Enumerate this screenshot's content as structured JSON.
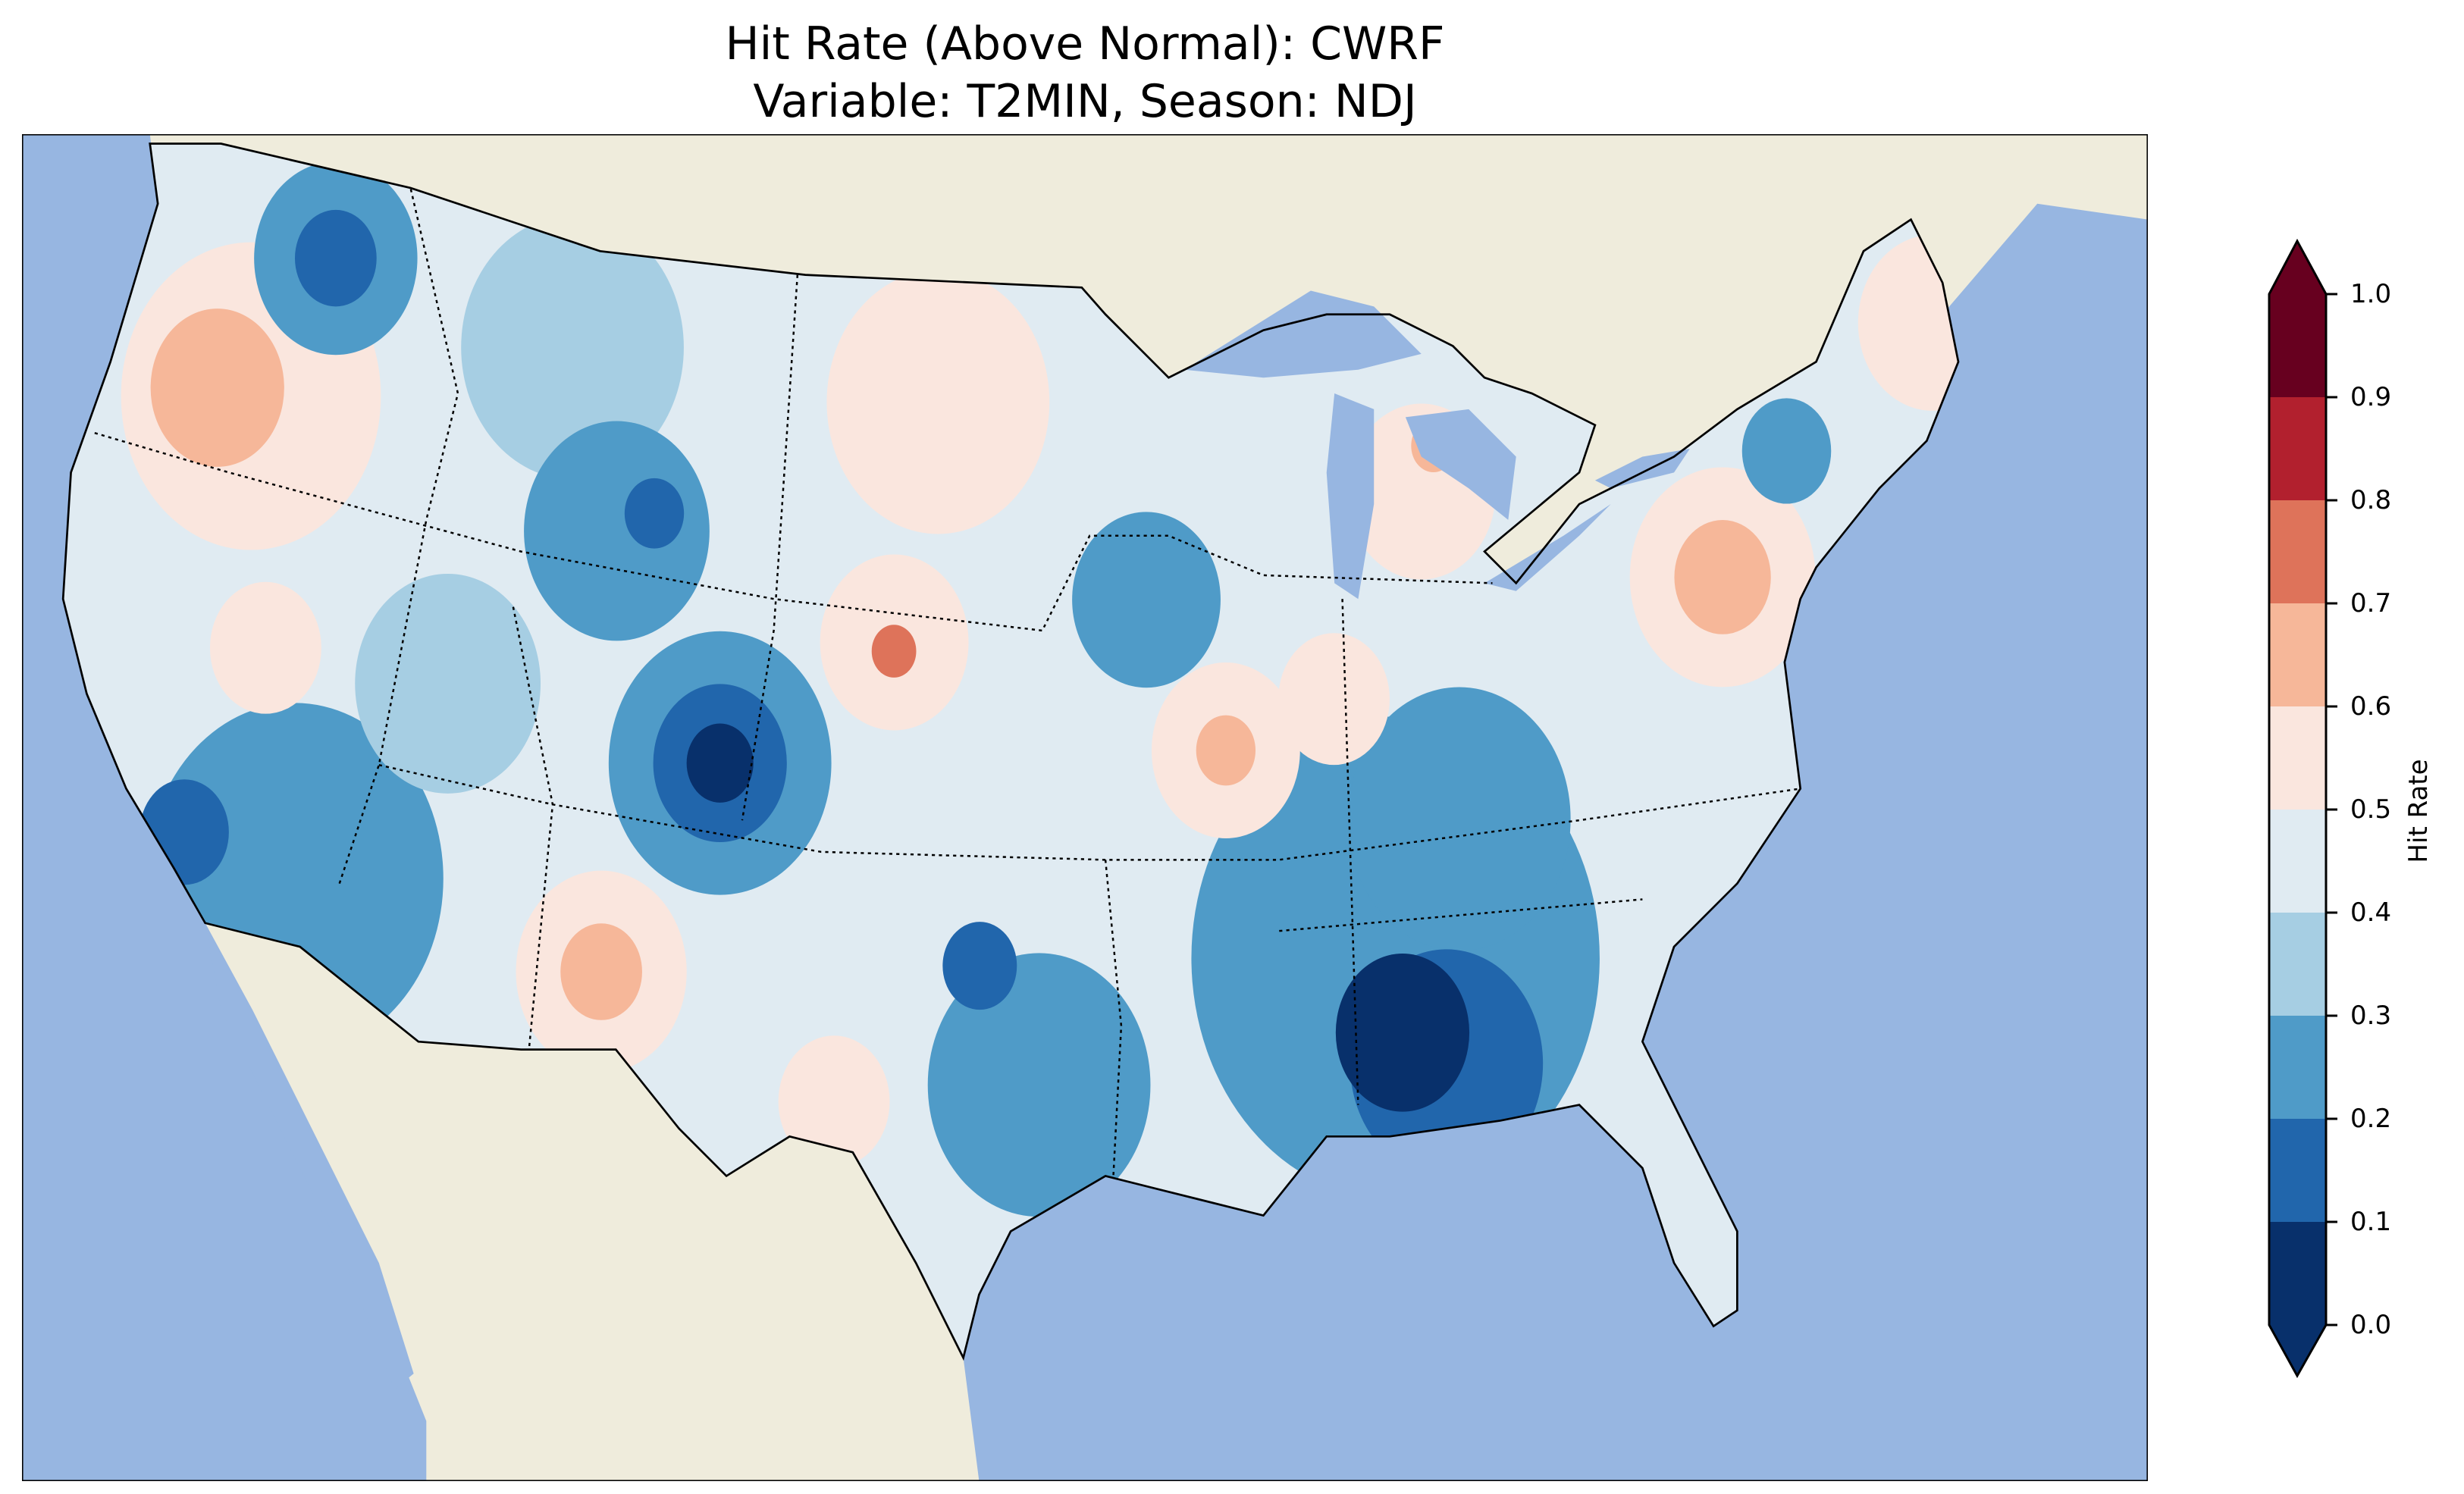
{
  "chart_data": {
    "type": "heatmap",
    "title": "Hit Rate (Above Normal): CWRF",
    "subtitle": "Variable: T2MIN, Season: NDJ",
    "colorbar": {
      "label": "Hit Rate",
      "range": [
        0.0,
        1.0
      ],
      "extend": "both",
      "ticks": [
        "0.0",
        "0.1",
        "0.2",
        "0.3",
        "0.4",
        "0.5",
        "0.6",
        "0.7",
        "0.8",
        "0.9",
        "1.0"
      ],
      "bins": [
        {
          "range": [
            0.0,
            0.1
          ],
          "color": "#08306b"
        },
        {
          "range": [
            0.1,
            0.2
          ],
          "color": "#2166ac"
        },
        {
          "range": [
            0.2,
            0.3
          ],
          "color": "#4f9bc8"
        },
        {
          "range": [
            0.3,
            0.4
          ],
          "color": "#a6cee3"
        },
        {
          "range": [
            0.4,
            0.5
          ],
          "color": "#e0ebf2"
        },
        {
          "range": [
            0.5,
            0.6
          ],
          "color": "#fae6de"
        },
        {
          "range": [
            0.6,
            0.7
          ],
          "color": "#f6b799"
        },
        {
          "range": [
            0.7,
            0.8
          ],
          "color": "#de735a"
        },
        {
          "range": [
            0.8,
            0.9
          ],
          "color": "#b2202e"
        },
        {
          "range": [
            0.9,
            1.0
          ],
          "color": "#67001f"
        }
      ]
    },
    "background_value": 0.45,
    "regions": [
      {
        "name": "southeast",
        "lon": -87,
        "lat": 33.5,
        "extent_deg": 5.5,
        "value": 0.25
      },
      {
        "name": "southwest",
        "lon": -115,
        "lat": 34,
        "extent_deg": 4,
        "value": 0.25
      },
      {
        "name": "colorado-wide",
        "lon": -104.5,
        "lat": 38,
        "extent_deg": 3,
        "value": 0.25
      },
      {
        "name": "east-texas",
        "lon": -96,
        "lat": 31,
        "extent_deg": 3,
        "value": 0.25
      },
      {
        "name": "tennessee-valley",
        "lon": -85,
        "lat": 36.5,
        "extent_deg": 3,
        "value": 0.25
      },
      {
        "name": "montana",
        "lon": -110,
        "lat": 47,
        "extent_deg": 3,
        "value": 0.35
      },
      {
        "name": "utah",
        "lon": -112,
        "lat": 39,
        "extent_deg": 2.5,
        "value": 0.35
      },
      {
        "name": "oregon",
        "lon": -119,
        "lat": 44.5,
        "extent_deg": 3.5,
        "value": 0.55
      },
      {
        "name": "dakotas",
        "lon": -99,
        "lat": 46.5,
        "extent_deg": 3,
        "value": 0.55
      },
      {
        "name": "pennsylvania",
        "lon": -77,
        "lat": 41,
        "extent_deg": 2.5,
        "value": 0.55
      },
      {
        "name": "maine",
        "lon": -69.5,
        "lat": 45.5,
        "extent_deg": 2,
        "value": 0.55
      },
      {
        "name": "nebraska",
        "lon": -100,
        "lat": 41,
        "extent_deg": 2,
        "value": 0.55
      },
      {
        "name": "missouri",
        "lon": -91,
        "lat": 38.5,
        "extent_deg": 2,
        "value": 0.55
      },
      {
        "name": "michigan",
        "lon": -85,
        "lat": 44,
        "extent_deg": 2,
        "value": 0.55
      },
      {
        "name": "new-mexico",
        "lon": -107,
        "lat": 33,
        "extent_deg": 2.3,
        "value": 0.55
      },
      {
        "name": "west-texas",
        "lon": -101,
        "lat": 30.5,
        "extent_deg": 1.5,
        "value": 0.55
      },
      {
        "name": "illinois",
        "lon": -88,
        "lat": 39.5,
        "extent_deg": 1.5,
        "value": 0.55
      },
      {
        "name": "nevada",
        "lon": -117,
        "lat": 39,
        "extent_deg": 1.5,
        "value": 0.55
      },
      {
        "name": "wyoming",
        "lon": -108,
        "lat": 43,
        "extent_deg": 2.5,
        "value": 0.25
      },
      {
        "name": "iowa",
        "lon": -93,
        "lat": 42,
        "extent_deg": 2,
        "value": 0.25
      },
      {
        "name": "idaho-north",
        "lon": -117.5,
        "lat": 48,
        "extent_deg": 2.2,
        "value": 0.25
      },
      {
        "name": "new-york",
        "lon": -74.5,
        "lat": 43.5,
        "extent_deg": 1.2,
        "value": 0.25
      },
      {
        "name": "alabama-wide",
        "lon": -86,
        "lat": 31,
        "extent_deg": 2.6,
        "value": 0.15
      },
      {
        "name": "colorado",
        "lon": -104.5,
        "lat": 38,
        "extent_deg": 1.8,
        "value": 0.15
      },
      {
        "name": "socal",
        "lon": -118,
        "lat": 34.5,
        "extent_deg": 1.2,
        "value": 0.15
      },
      {
        "name": "oklahoma",
        "lon": -97.5,
        "lat": 33.7,
        "extent_deg": 1,
        "value": 0.15
      },
      {
        "name": "idaho-core",
        "lon": -117.5,
        "lat": 48,
        "extent_deg": 1.1,
        "value": 0.15
      },
      {
        "name": "wyoming-core",
        "lon": -107,
        "lat": 43.5,
        "extent_deg": 0.8,
        "value": 0.15
      },
      {
        "name": "alabama-core",
        "lon": -87,
        "lat": 31.8,
        "extent_deg": 1.8,
        "value": 0.05
      },
      {
        "name": "colorado-core",
        "lon": -104.5,
        "lat": 38,
        "extent_deg": 0.9,
        "value": 0.05
      },
      {
        "name": "oregon-core",
        "lon": -120,
        "lat": 44.5,
        "extent_deg": 1.8,
        "value": 0.65
      },
      {
        "name": "pennsylvania-core",
        "lon": -77,
        "lat": 41,
        "extent_deg": 1.3,
        "value": 0.65
      },
      {
        "name": "missouri-core",
        "lon": -91,
        "lat": 38.5,
        "extent_deg": 0.8,
        "value": 0.65
      },
      {
        "name": "new-mexico-core",
        "lon": -107,
        "lat": 33,
        "extent_deg": 1.1,
        "value": 0.65
      },
      {
        "name": "michigan-core",
        "lon": -84.5,
        "lat": 45,
        "extent_deg": 0.6,
        "value": 0.65
      },
      {
        "name": "nebraska-core",
        "lon": -100,
        "lat": 40.8,
        "extent_deg": 0.6,
        "value": 0.75
      }
    ]
  },
  "colors": {
    "ocean": "#97b6e1",
    "land": "#efecdc"
  }
}
